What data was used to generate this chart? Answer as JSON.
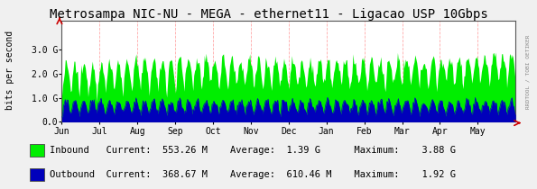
{
  "title": "Metrosampa NIC-NU - MEGA - ethernet11 - Ligacao USP 10Gbps",
  "ylabel": "bits per second",
  "bg_color": "#f0f0f0",
  "plot_bg_color": "#ffffff",
  "grid_color": "#ffaaaa",
  "inbound_color": "#00ee00",
  "outbound_color": "#0000bb",
  "legend": [
    {
      "label": "Inbound",
      "current": "553.26 M",
      "average": "1.39 G",
      "maximum": "3.88 G"
    },
    {
      "label": "Outbound",
      "current": "368.67 M",
      "average": "610.46 M",
      "maximum": "1.92 G"
    }
  ],
  "x_tick_labels": [
    "Jun",
    "Jul",
    "Aug",
    "Sep",
    "Oct",
    "Nov",
    "Dec",
    "Jan",
    "Feb",
    "Mar",
    "Apr",
    "May"
  ],
  "y_tick_labels": [
    "0.0",
    "1.0 G",
    "2.0 G",
    "3.0 G"
  ],
  "y_max": 4200000000.0,
  "y_min": 0,
  "watermark": "RRDTOOL / TOBI OETIKER",
  "title_fontsize": 10,
  "axis_fontsize": 7,
  "legend_fontsize": 7.5
}
